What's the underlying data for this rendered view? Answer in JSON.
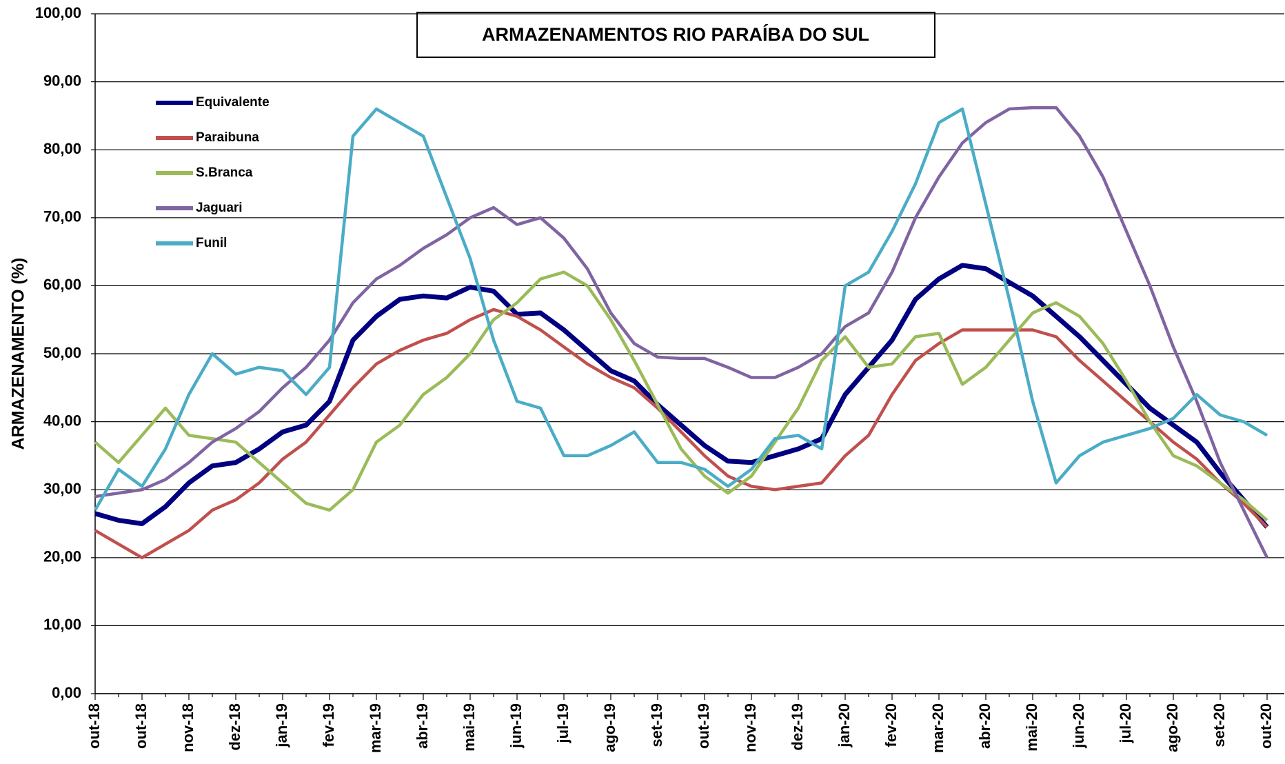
{
  "chart_data": {
    "type": "line",
    "title": "ARMAZENAMENTOS  RIO PARAÍBA  DO SUL",
    "y_label": "ARMAZENAMENTO  (%)",
    "categories": [
      "out-18",
      null,
      "out-18",
      null,
      "nov-18",
      null,
      "dez-18",
      null,
      "jan-19",
      null,
      "fev-19",
      null,
      "mar-19",
      null,
      "abr-19",
      null,
      "mai-19",
      null,
      "jun-19",
      null,
      "jul-19",
      null,
      "ago-19",
      null,
      "set-19",
      null,
      "out-19",
      null,
      "nov-19",
      null,
      "dez-19",
      null,
      "jan-20",
      null,
      "fev-20",
      null,
      "mar-20",
      null,
      "abr-20",
      null,
      "mai-20",
      null,
      "jun-20",
      null,
      "jul-20",
      null,
      "ago-20",
      null,
      "set-20",
      null,
      "out-20"
    ],
    "series": [
      {
        "name": "Equivalente",
        "color": "#000080",
        "values": [
          26.5,
          25.5,
          25,
          27.5,
          31,
          33.5,
          34,
          36,
          38.5,
          39.5,
          43,
          52,
          55.5,
          58,
          58.5,
          58.2,
          59.8,
          59.2,
          55.8,
          56,
          53.5,
          50.5,
          47.5,
          46,
          42.5,
          39.5,
          36.5,
          34.2,
          34,
          35,
          36,
          37.5,
          44,
          48,
          52,
          58,
          61,
          63,
          62.5,
          60.5,
          58.5,
          55.5,
          52.5,
          49,
          45.5,
          42,
          39.5,
          37,
          32.5,
          28.5,
          24.5
        ]
      },
      {
        "name": "Paraibuna",
        "color": "#c0504d",
        "values": [
          24,
          22,
          20,
          22,
          24,
          27,
          28.5,
          31,
          34.5,
          37,
          41,
          45,
          48.5,
          50.5,
          52,
          53,
          55,
          56.5,
          55.5,
          53.5,
          51,
          48.5,
          46.5,
          45,
          42,
          38.5,
          35,
          32,
          30.5,
          30,
          30.5,
          31,
          35,
          38,
          44,
          49,
          51.5,
          53.5,
          53.5,
          53.5,
          53.5,
          52.5,
          49,
          46,
          43,
          40,
          37,
          34.5,
          31,
          28,
          24.5
        ]
      },
      {
        "name": "S.Branca",
        "color": "#9bbb59",
        "values": [
          37,
          34,
          38,
          42,
          38,
          37.5,
          37,
          34,
          31,
          28,
          27,
          30,
          37,
          39.5,
          44,
          46.5,
          50,
          55,
          57.5,
          61,
          62,
          60,
          55,
          49,
          42.5,
          36,
          32,
          29.5,
          32,
          37,
          42,
          49,
          52.5,
          48,
          48.5,
          52.5,
          53,
          45.5,
          48,
          52,
          56,
          57.5,
          55.5,
          51.5,
          46,
          40,
          35,
          33.5,
          31,
          28.5,
          25.5
        ]
      },
      {
        "name": "Jaguari",
        "color": "#8064a2",
        "values": [
          29,
          29.5,
          30,
          31.5,
          34,
          37,
          39,
          41.5,
          45,
          48,
          52,
          57.5,
          61,
          63,
          65.5,
          67.5,
          70,
          71.5,
          69,
          70,
          67,
          62.5,
          56,
          51.5,
          49.5,
          49.3,
          49.3,
          48,
          46.5,
          46.5,
          48,
          50,
          54,
          56,
          62,
          70,
          76,
          81,
          84,
          86,
          86.2,
          86.2,
          82,
          76,
          68,
          60,
          51,
          43,
          34,
          27,
          20
        ]
      },
      {
        "name": "Funil",
        "color": "#4bacc6",
        "values": [
          27,
          33,
          30.5,
          36,
          44,
          50,
          47,
          48,
          47.5,
          44,
          48,
          82,
          86,
          84,
          82,
          73,
          64,
          52,
          43,
          42,
          35,
          35,
          36.5,
          38.5,
          34,
          34,
          33,
          30.5,
          33,
          37.5,
          38,
          36,
          60,
          62,
          68,
          75,
          84,
          86,
          72,
          58,
          43,
          31,
          35,
          37,
          38,
          39,
          40.5,
          44,
          41,
          40,
          38
        ]
      }
    ],
    "ylim": [
      0,
      100
    ],
    "yticks": [
      {
        "value": 0,
        "label": "0,00"
      },
      {
        "value": 10,
        "label": "10,00"
      },
      {
        "value": 20,
        "label": "20,00"
      },
      {
        "value": 30,
        "label": "30,00"
      },
      {
        "value": 40,
        "label": "40,00"
      },
      {
        "value": 50,
        "label": "50,00"
      },
      {
        "value": 60,
        "label": "60,00"
      },
      {
        "value": 70,
        "label": "70,00"
      },
      {
        "value": 80,
        "label": "80,00"
      },
      {
        "value": 90,
        "label": "90,00"
      },
      {
        "value": 100,
        "label": "100,00"
      }
    ],
    "grid": true
  }
}
